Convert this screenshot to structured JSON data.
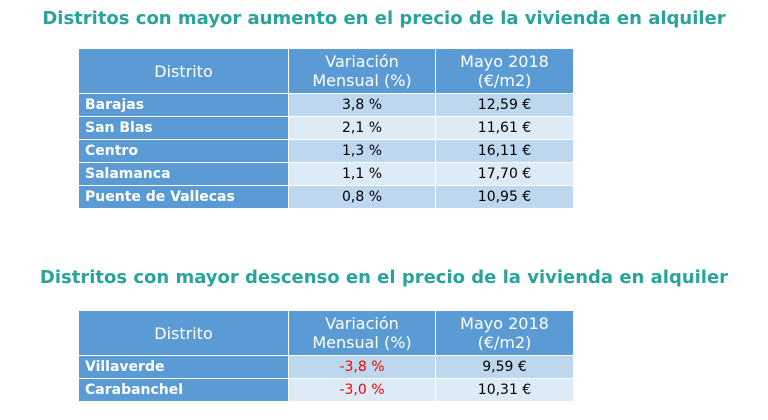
{
  "increase_table": {
    "title": "Distritos con mayor aumento en el precio de la vivienda en alquiler",
    "headers": {
      "district": "Distrito",
      "variation_line1": "Variación",
      "variation_line2": "Mensual (%)",
      "price_line1": "Mayo 2018",
      "price_line2": "(€/m2)"
    },
    "rows": [
      {
        "district": "Barajas",
        "variation": "3,8 %",
        "price": "12,59 €"
      },
      {
        "district": "San Blas",
        "variation": "2,1 %",
        "price": "11,61 €"
      },
      {
        "district": "Centro",
        "variation": "1,3 %",
        "price": "16,11 €"
      },
      {
        "district": "Salamanca",
        "variation": "1,1 %",
        "price": "17,70 €"
      },
      {
        "district": "Puente de Vallecas",
        "variation": "0,8 %",
        "price": "10,95 €"
      }
    ]
  },
  "decrease_table": {
    "title": "Distritos con mayor descenso en el precio de la vivienda en alquiler",
    "headers": {
      "district": "Distrito",
      "variation_line1": "Variación",
      "variation_line2": "Mensual (%)",
      "price_line1": "Mayo 2018",
      "price_line2": "(€/m2)"
    },
    "rows": [
      {
        "district": "Villaverde",
        "variation": "-3,8 %",
        "price": "9,59 €"
      },
      {
        "district": "Carabanchel",
        "variation": "-3,0 %",
        "price": "10,31 €"
      }
    ]
  },
  "colors": {
    "title": "#2aa39a",
    "header_bg": "#5b9bd5",
    "row_odd": "#bdd7ee",
    "row_even": "#ddebf7",
    "negative_value": "#ff0000"
  }
}
